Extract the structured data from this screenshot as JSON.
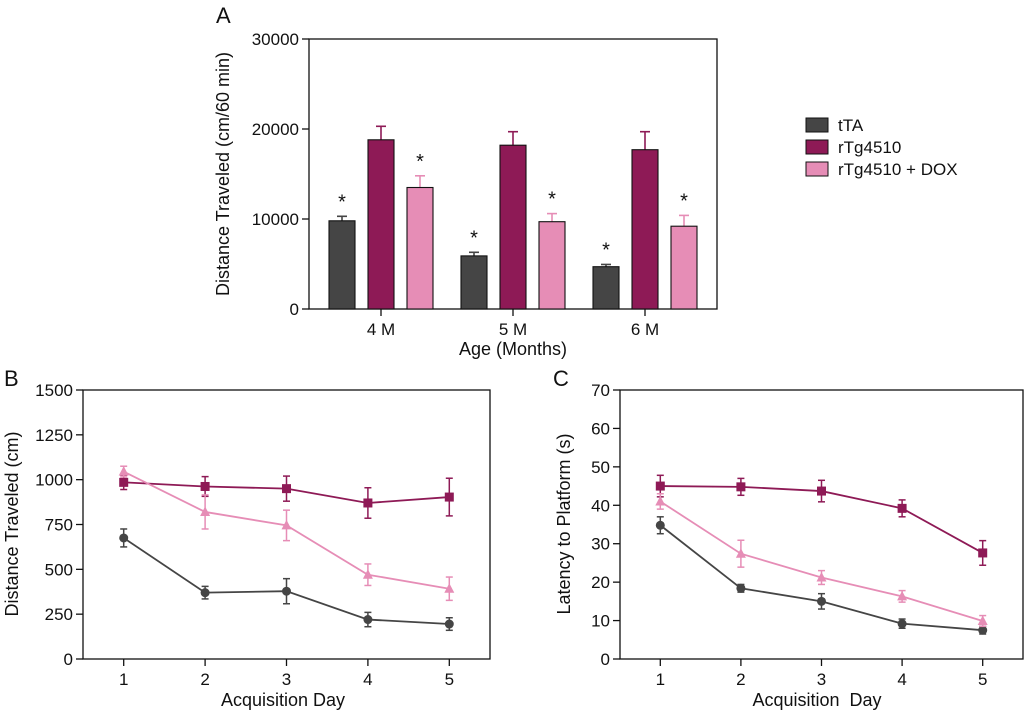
{
  "series_styles": [
    {
      "name": "tTA",
      "color": "#454545",
      "marker": "circle"
    },
    {
      "name": "rTg4510",
      "color": "#8e1a56",
      "marker": "square"
    },
    {
      "name": "rTg4510 + DOX",
      "color": "#e68db6",
      "marker": "triangle"
    }
  ],
  "legend_placement": "right of panel A",
  "chart_data": [
    {
      "panel": "A",
      "type": "bar",
      "categories": [
        "4 M",
        "5 M",
        "6 M"
      ],
      "series": [
        {
          "name": "tTA",
          "values": [
            9800,
            5900,
            4700
          ],
          "errors": [
            500,
            400,
            250
          ],
          "significant": [
            "*",
            "*",
            "*"
          ]
        },
        {
          "name": "rTg4510",
          "values": [
            18800,
            18200,
            17700
          ],
          "errors": [
            1500,
            1500,
            2000
          ],
          "significant": [
            "",
            "",
            ""
          ]
        },
        {
          "name": "rTg4510 + DOX",
          "values": [
            13500,
            9700,
            9200
          ],
          "errors": [
            1300,
            900,
            1200
          ],
          "significant": [
            "*",
            "*",
            "*"
          ]
        }
      ],
      "xlabel": "Age (Months)",
      "ylabel": "Distance Traveled (cm/60 min)",
      "ylim": [
        0,
        30000
      ],
      "yticks": [
        0,
        10000,
        20000,
        30000
      ],
      "grid": false
    },
    {
      "panel": "B",
      "type": "line",
      "x": [
        1,
        2,
        3,
        4,
        5
      ],
      "series": [
        {
          "name": "tTA",
          "values": [
            675,
            370,
            378,
            220,
            195
          ],
          "errors": [
            50,
            35,
            70,
            40,
            35
          ]
        },
        {
          "name": "rTg4510",
          "values": [
            985,
            962,
            950,
            870,
            903
          ],
          "errors": [
            40,
            55,
            70,
            85,
            105
          ]
        },
        {
          "name": "rTg4510 + DOX",
          "values": [
            1045,
            820,
            745,
            470,
            392
          ],
          "errors": [
            30,
            95,
            85,
            60,
            65
          ]
        }
      ],
      "xlabel": "Acquisition Day",
      "ylabel": "Distance Traveled (cm)",
      "xlim": [
        0.5,
        5.5
      ],
      "ylim": [
        0,
        1500
      ],
      "yticks": [
        0,
        250,
        500,
        750,
        1000,
        1250,
        1500
      ],
      "grid": false
    },
    {
      "panel": "C",
      "type": "line",
      "x": [
        1,
        2,
        3,
        4,
        5
      ],
      "series": [
        {
          "name": "tTA",
          "values": [
            34.8,
            18.4,
            15.0,
            9.2,
            7.5
          ],
          "errors": [
            2.2,
            1.0,
            2.0,
            1.2,
            1.0
          ]
        },
        {
          "name": "rTg4510",
          "values": [
            45.0,
            44.8,
            43.7,
            39.2,
            27.6
          ],
          "errors": [
            2.8,
            2.2,
            2.8,
            2.2,
            3.2
          ]
        },
        {
          "name": "rTg4510 + DOX",
          "values": [
            41.0,
            27.4,
            21.2,
            16.3,
            9.9
          ],
          "errors": [
            2.0,
            3.5,
            1.8,
            1.5,
            1.4
          ]
        }
      ],
      "xlabel": "Acquisition  Day",
      "ylabel": "Latency to Platform (s)",
      "xlim": [
        0.5,
        5.5
      ],
      "ylim": [
        0,
        70
      ],
      "yticks": [
        0,
        10,
        20,
        30,
        40,
        50,
        60,
        70
      ],
      "grid": false
    }
  ]
}
